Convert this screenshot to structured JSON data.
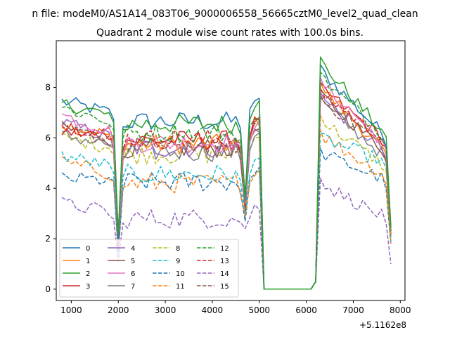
{
  "chart_data": {
    "type": "line",
    "suptitle": "n file: modeM0/AS1A14_083T06_9000006558_56665cztM0_level2_quad_clean",
    "title": "Quadrant 2 module wise count rates with 100.0s bins.",
    "xlabel": "",
    "ylabel": "",
    "x_offset_label": "+5.1162e8",
    "xlim": [
      680,
      8100
    ],
    "ylim": [
      -0.45,
      9.85
    ],
    "xticks": [
      1000,
      2000,
      3000,
      4000,
      5000,
      6000,
      7000,
      8000
    ],
    "xtick_labels": [
      "1000",
      "2000",
      "3000",
      "4000",
      "5000",
      "6000",
      "7000",
      "8000"
    ],
    "yticks": [
      0,
      2,
      4,
      6,
      8
    ],
    "ytick_labels": [
      "0",
      "2",
      "4",
      "6",
      "8"
    ],
    "grid": false,
    "legend_position": "lower-left",
    "legend_columns": 4,
    "x_start": 800,
    "x_step": 100,
    "gaps": [
      2000,
      4700
    ],
    "gap_values": {
      "m0": [
        2.0,
        3.6
      ],
      "m1": [
        2.1,
        3.5
      ],
      "m2": [
        2.2,
        3.7
      ],
      "m3": [
        1.9,
        3.4
      ],
      "m4": [
        1.6,
        3.3
      ],
      "m5": [
        1.8,
        3.3
      ],
      "m6": [
        1.9,
        3.4
      ],
      "m7": [
        1.6,
        3.2
      ],
      "m8": [
        1.8,
        3.2
      ],
      "m9": [
        1.5,
        3.0
      ],
      "m10": [
        1.4,
        2.7
      ],
      "m11": [
        1.5,
        2.9
      ],
      "m12": [
        2.0,
        3.5
      ],
      "m13": [
        1.8,
        3.3
      ],
      "m14": [
        1.1,
        2.4
      ],
      "m15": [
        1.6,
        3.1
      ]
    },
    "series": [
      {
        "name": "0",
        "color": "#1f77b4",
        "dash": "solid",
        "start": 7.45,
        "mid": 6.65,
        "pre_gap": 7.55,
        "post": 8.7,
        "end": 6.2,
        "tail": 2.5
      },
      {
        "name": "1",
        "color": "#ff7f0e",
        "dash": "solid",
        "start": 6.55,
        "mid": 5.75,
        "pre_gap": 6.65,
        "post": 8.0,
        "end": 5.6,
        "tail": 2.2
      },
      {
        "name": "2",
        "color": "#2ca02c",
        "dash": "solid",
        "start": 7.35,
        "mid": 6.55,
        "pre_gap": 7.35,
        "post": 9.0,
        "end": 6.3,
        "tail": 2.4
      },
      {
        "name": "3",
        "color": "#d62728",
        "dash": "solid",
        "start": 6.25,
        "mid": 5.9,
        "pre_gap": 6.6,
        "post": 8.0,
        "end": 6.0,
        "tail": 2.3
      },
      {
        "name": "4",
        "color": "#9467bd",
        "dash": "solid",
        "start": 6.6,
        "mid": 5.6,
        "pre_gap": 6.3,
        "post": 7.6,
        "end": 5.6,
        "tail": 2.2
      },
      {
        "name": "5",
        "color": "#8c564b",
        "dash": "solid",
        "start": 6.4,
        "mid": 5.6,
        "pre_gap": 6.3,
        "post": 7.7,
        "end": 5.6,
        "tail": 2.2
      },
      {
        "name": "6",
        "color": "#e377c2",
        "dash": "solid",
        "start": 6.9,
        "mid": 5.8,
        "pre_gap": 6.5,
        "post": 8.2,
        "end": 5.9,
        "tail": 2.3
      },
      {
        "name": "7",
        "color": "#7f7f7f",
        "dash": "solid",
        "start": 6.1,
        "mid": 5.45,
        "pre_gap": 6.1,
        "post": 7.4,
        "end": 5.4,
        "tail": 2.1
      },
      {
        "name": "8",
        "color": "#bcbd22",
        "dash": "dashed",
        "start": 6.0,
        "mid": 5.35,
        "pre_gap": 6.0,
        "post": 6.7,
        "end": 5.0,
        "tail": 2.0
      },
      {
        "name": "9",
        "color": "#17becf",
        "dash": "dashed",
        "start": 5.3,
        "mid": 4.55,
        "pre_gap": 5.2,
        "post": 6.0,
        "end": 5.1,
        "tail": 1.9
      },
      {
        "name": "10",
        "color": "#1f77b4",
        "dash": "dashed",
        "start": 4.4,
        "mid": 4.25,
        "pre_gap": 4.75,
        "post": 5.4,
        "end": 4.4,
        "tail": 1.8
      },
      {
        "name": "11",
        "color": "#ff7f0e",
        "dash": "dashed",
        "start": 5.05,
        "mid": 4.2,
        "pre_gap": 4.7,
        "post": 6.1,
        "end": 4.6,
        "tail": 1.8
      },
      {
        "name": "12",
        "color": "#2ca02c",
        "dash": "dashed",
        "start": 7.2,
        "mid": 6.2,
        "pre_gap": 6.9,
        "post": 8.4,
        "end": 6.2,
        "tail": 2.3
      },
      {
        "name": "13",
        "color": "#d62728",
        "dash": "dashed",
        "start": 6.5,
        "mid": 5.95,
        "pre_gap": 6.6,
        "post": 7.8,
        "end": 6.0,
        "tail": 2.3
      },
      {
        "name": "14",
        "color": "#9467bd",
        "dash": "dashed",
        "start": 3.4,
        "mid": 2.8,
        "pre_gap": 3.3,
        "post": 4.2,
        "end": 2.9,
        "tail": 1.0
      },
      {
        "name": "15",
        "color": "#8c564b",
        "dash": "dashed",
        "start": 6.3,
        "mid": 5.75,
        "pre_gap": 6.5,
        "post": 7.5,
        "end": 5.9,
        "tail": 2.2
      }
    ]
  }
}
